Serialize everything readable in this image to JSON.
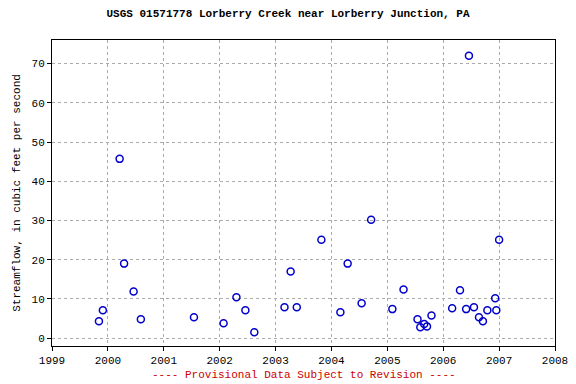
{
  "chart_data": {
    "type": "scatter",
    "title": "USGS 01571778 Lorberry Creek near Lorberry Junction, PA",
    "y_label": "Streamflow, in cubic feet per second",
    "annotations": [
      "---- Provisional Data Subject to Revision ----"
    ],
    "x": [
      1999.84,
      1999.91,
      2000.21,
      2000.29,
      2000.46,
      2000.59,
      2001.54,
      2002.07,
      2002.3,
      2002.46,
      2002.62,
      2003.16,
      2003.27,
      2003.38,
      2003.82,
      2004.16,
      2004.29,
      2004.54,
      2004.71,
      2005.09,
      2005.29,
      2005.54,
      2005.59,
      2005.66,
      2005.71,
      2005.79,
      2006.16,
      2006.3,
      2006.41,
      2006.46,
      2006.55,
      2006.64,
      2006.71,
      2006.79,
      2006.93,
      2006.95,
      2007.0
    ],
    "values": [
      4.3,
      7.1,
      45.7,
      19,
      11.9,
      4.8,
      5.3,
      3.8,
      10.4,
      7.1,
      1.5,
      7.9,
      17,
      7.9,
      25.1,
      6.6,
      19,
      8.9,
      30.2,
      7.4,
      12.4,
      4.8,
      2.8,
      3.6,
      3,
      5.8,
      7.6,
      12.2,
      7.4,
      72,
      7.9,
      5.3,
      4.3,
      7.1,
      10.2,
      7.1,
      25.1
    ],
    "color": "#0000cc",
    "marker": "circle-open",
    "xlim": [
      1999,
      2008
    ],
    "xticks": [
      1999,
      2000,
      2001,
      2002,
      2003,
      2004,
      2005,
      2006,
      2007,
      2008
    ],
    "ylim": [
      -2,
      76
    ],
    "yticks": [
      0,
      10,
      20,
      30,
      40,
      50,
      60,
      70
    ],
    "grid": true
  }
}
